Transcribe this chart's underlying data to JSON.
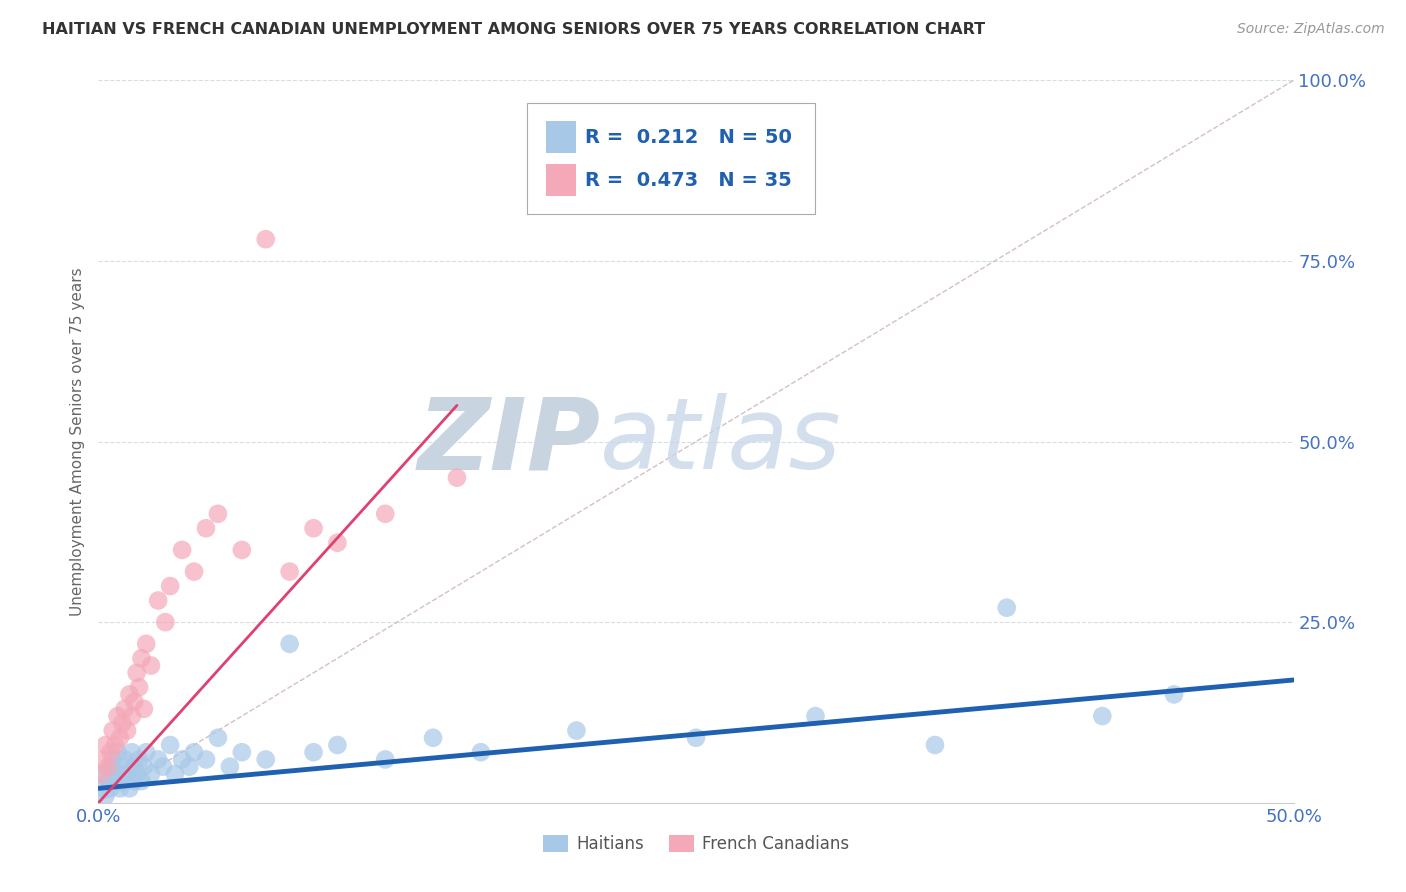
{
  "title": "HAITIAN VS FRENCH CANADIAN UNEMPLOYMENT AMONG SENIORS OVER 75 YEARS CORRELATION CHART",
  "source": "Source: ZipAtlas.com",
  "xlim": [
    0.0,
    0.5
  ],
  "ylim": [
    0.0,
    1.0
  ],
  "ylabel": "Unemployment Among Seniors over 75 years",
  "legend_labels": [
    "Haitians",
    "French Canadians"
  ],
  "legend_R": [
    0.212,
    0.473
  ],
  "legend_N": [
    50,
    35
  ],
  "haitian_color": "#a8c8e8",
  "french_color": "#f4a8b8",
  "haitian_line_color": "#2060b0",
  "french_line_color": "#e04070",
  "ref_line_color": "#c8b0b8",
  "watermark_zip": "ZIP",
  "watermark_atlas": "atlas",
  "watermark_color_zip": "#c8d8e8",
  "watermark_color_atlas": "#c8d8e8",
  "haitian_x": [
    0.001,
    0.002,
    0.003,
    0.004,
    0.005,
    0.005,
    0.006,
    0.007,
    0.008,
    0.008,
    0.009,
    0.01,
    0.01,
    0.011,
    0.012,
    0.013,
    0.014,
    0.015,
    0.015,
    0.016,
    0.017,
    0.018,
    0.019,
    0.02,
    0.022,
    0.025,
    0.027,
    0.03,
    0.032,
    0.035,
    0.038,
    0.04,
    0.045,
    0.05,
    0.055,
    0.06,
    0.07,
    0.08,
    0.09,
    0.1,
    0.12,
    0.14,
    0.16,
    0.2,
    0.25,
    0.3,
    0.35,
    0.38,
    0.42,
    0.45
  ],
  "haitian_y": [
    0.02,
    0.04,
    0.01,
    0.03,
    0.05,
    0.02,
    0.06,
    0.03,
    0.04,
    0.07,
    0.02,
    0.05,
    0.03,
    0.06,
    0.04,
    0.02,
    0.07,
    0.03,
    0.05,
    0.04,
    0.06,
    0.03,
    0.05,
    0.07,
    0.04,
    0.06,
    0.05,
    0.08,
    0.04,
    0.06,
    0.05,
    0.07,
    0.06,
    0.09,
    0.05,
    0.07,
    0.06,
    0.22,
    0.07,
    0.08,
    0.06,
    0.09,
    0.07,
    0.1,
    0.09,
    0.12,
    0.08,
    0.27,
    0.12,
    0.15
  ],
  "french_x": [
    0.001,
    0.002,
    0.003,
    0.004,
    0.005,
    0.006,
    0.007,
    0.008,
    0.009,
    0.01,
    0.011,
    0.012,
    0.013,
    0.014,
    0.015,
    0.016,
    0.017,
    0.018,
    0.019,
    0.02,
    0.022,
    0.025,
    0.028,
    0.03,
    0.035,
    0.04,
    0.045,
    0.05,
    0.06,
    0.07,
    0.08,
    0.09,
    0.1,
    0.12,
    0.15
  ],
  "french_y": [
    0.04,
    0.06,
    0.08,
    0.05,
    0.07,
    0.1,
    0.08,
    0.12,
    0.09,
    0.11,
    0.13,
    0.1,
    0.15,
    0.12,
    0.14,
    0.18,
    0.16,
    0.2,
    0.13,
    0.22,
    0.19,
    0.28,
    0.25,
    0.3,
    0.35,
    0.32,
    0.38,
    0.4,
    0.35,
    0.78,
    0.32,
    0.38,
    0.36,
    0.4,
    0.45
  ],
  "haitian_trend_x": [
    0.0,
    0.5
  ],
  "haitian_trend_y": [
    0.02,
    0.17
  ],
  "french_trend_x": [
    0.0,
    0.15
  ],
  "french_trend_y": [
    0.0,
    0.55
  ],
  "background_color": "#ffffff",
  "grid_color": "#d8dce8"
}
